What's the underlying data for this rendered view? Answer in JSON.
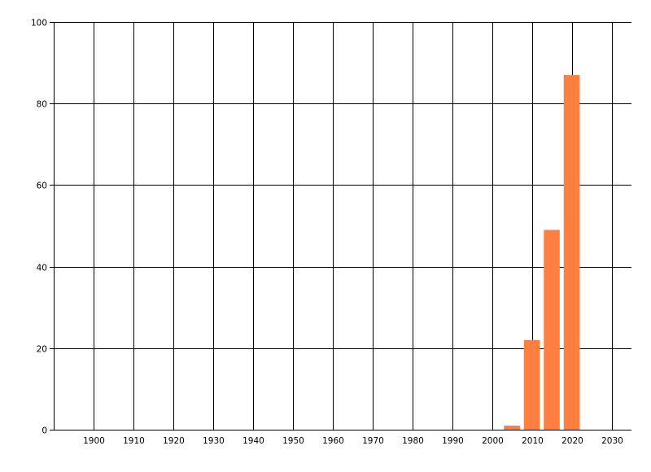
{
  "chart_data": {
    "type": "bar",
    "title": "",
    "xlabel": "",
    "ylabel": "",
    "x": [
      2005,
      2010,
      2015,
      2020
    ],
    "values": [
      1,
      22,
      49,
      87
    ],
    "bar_width_years": 4,
    "xlim": [
      1890,
      2035
    ],
    "ylim": [
      0,
      100
    ],
    "xticks": [
      1900,
      1910,
      1920,
      1930,
      1940,
      1950,
      1960,
      1970,
      1980,
      1990,
      2000,
      2010,
      2020,
      2030
    ],
    "yticks": [
      0,
      20,
      40,
      60,
      80,
      100
    ],
    "grid": true,
    "legend": "none",
    "colors": {
      "bar": "#FF7F41",
      "grid": "#000000",
      "top_tick_label": "#CC0000"
    }
  }
}
